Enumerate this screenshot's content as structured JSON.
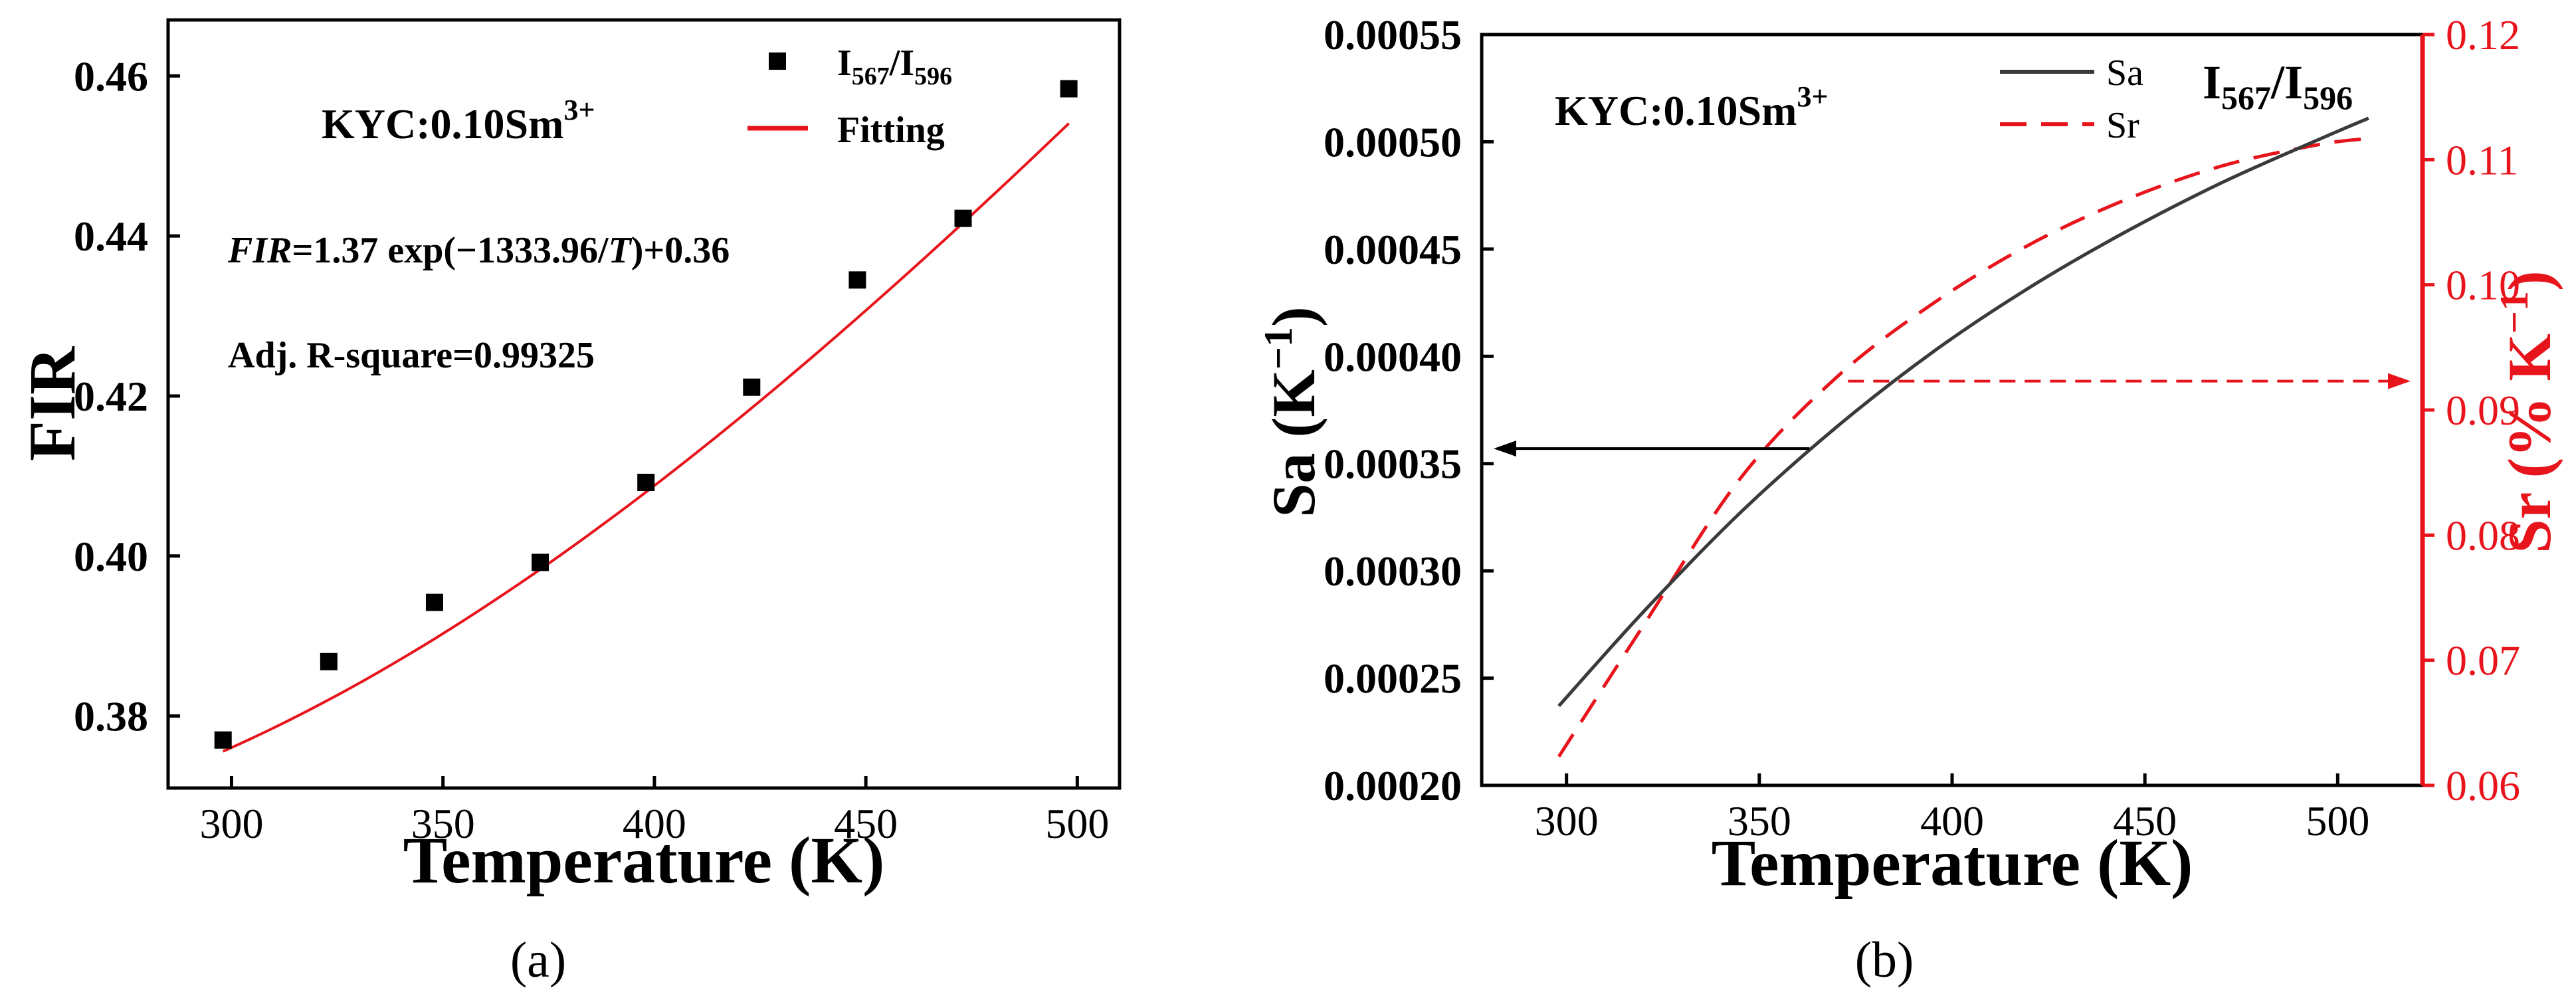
{
  "colors": {
    "axis": "#000000",
    "points": "#000000",
    "fit": "#e8141c",
    "sa": "#3a3a3a",
    "sr": "#e8141c"
  },
  "chart_data": [
    {
      "panel_label": "(a)",
      "type": "scatter",
      "title": "",
      "xlabel": "Temperature (K)",
      "ylabel": "FIR",
      "xlim": [
        285,
        510
      ],
      "ylim": [
        0.371,
        0.467
      ],
      "xticks": [
        300,
        350,
        400,
        450,
        500
      ],
      "xtick_labels": [
        "300",
        "350",
        "400",
        "450",
        "500"
      ],
      "yticks": [
        0.38,
        0.4,
        0.42,
        0.44,
        0.46
      ],
      "ytick_labels": [
        "0.38",
        "0.40",
        "0.42",
        "0.44",
        "0.46"
      ],
      "series": [
        {
          "name": "I567/I596",
          "legend": {
            "main": "I",
            "sub1": "567",
            "slash": "/I",
            "sub2": "596"
          },
          "kind": "points",
          "x": [
            298,
            323,
            348,
            373,
            398,
            423,
            448,
            473,
            498
          ],
          "y": [
            0.377,
            0.3868,
            0.3942,
            0.3992,
            0.4092,
            0.4211,
            0.4345,
            0.4422,
            0.4584
          ]
        },
        {
          "name": "Fitting",
          "kind": "fit",
          "equation": {
            "a": 1.37,
            "b": 1333.96,
            "c": 0.36
          },
          "x_range": [
            298,
            498
          ]
        }
      ],
      "annotations": {
        "sample": {
          "main": "KYC:0.10Sm",
          "sup": "3+"
        },
        "equation": {
          "var": "FIR",
          "mid": "=1.37 exp(−1333.96/",
          "t": "T",
          "end": ")+0.36"
        },
        "r_square": "Adj. R-square=0.99325"
      },
      "legend_position": "top-right"
    },
    {
      "panel_label": "(b)",
      "type": "line",
      "title": "",
      "title_formula": {
        "main": "I",
        "sub1": "567",
        "slash": "/I",
        "sub2": "596"
      },
      "xlabel": "Temperature (K)",
      "ylabel_left": {
        "main": "Sa (K",
        "sup": "−1",
        "end": ")"
      },
      "ylabel_right": {
        "main": "Sr (% K",
        "sup": "−1",
        "end": ")"
      },
      "xlim": [
        278,
        522
      ],
      "ylim_left": [
        0.0002,
        0.00055
      ],
      "ylim_right": [
        0.06,
        0.12
      ],
      "xticks": [
        300,
        350,
        400,
        450,
        500
      ],
      "xtick_labels": [
        "300",
        "350",
        "400",
        "450",
        "500"
      ],
      "yticks_left": [
        0.0002,
        0.00025,
        0.0003,
        0.00035,
        0.0004,
        0.00045,
        0.0005,
        0.00055
      ],
      "ytick_labels_left": [
        "0.00020",
        "0.00025",
        "0.00030",
        "0.00035",
        "0.00040",
        "0.00045",
        "0.00050",
        "0.00055"
      ],
      "yticks_right": [
        0.06,
        0.07,
        0.08,
        0.09,
        0.1,
        0.11,
        0.12
      ],
      "ytick_labels_right": [
        "0.06",
        "0.07",
        "0.08",
        "0.09",
        "0.10",
        "0.11",
        "0.12"
      ],
      "series": [
        {
          "name": "Sa",
          "axis": "left",
          "style": "solid",
          "x": [
            298,
            320,
            345,
            370,
            395,
            420,
            445,
            470,
            495,
            508
          ],
          "y": [
            0.000237,
            0.000281,
            0.000327,
            0.000367,
            0.000402,
            0.000432,
            0.000458,
            0.000481,
            0.000501,
            0.000511
          ]
        },
        {
          "name": "Sr",
          "axis": "right",
          "style": "dashed",
          "x": [
            298,
            320,
            345,
            370,
            395,
            420,
            445,
            470,
            495,
            508
          ],
          "y": [
            0.0623,
            0.0728,
            0.0845,
            0.0926,
            0.0985,
            0.1032,
            0.1068,
            0.1095,
            0.1112,
            0.1117
          ]
        }
      ],
      "annotations": {
        "sample": {
          "main": "KYC:0.10Sm",
          "sup": "3+"
        },
        "arrow_left": {
          "from_x": 363,
          "to_x": 278,
          "y": 0.000357,
          "axis": "left"
        },
        "arrow_right": {
          "from_x": 373,
          "to_x": 522,
          "y": 0.0923,
          "axis": "right"
        }
      },
      "legend_position": "top-right"
    }
  ]
}
